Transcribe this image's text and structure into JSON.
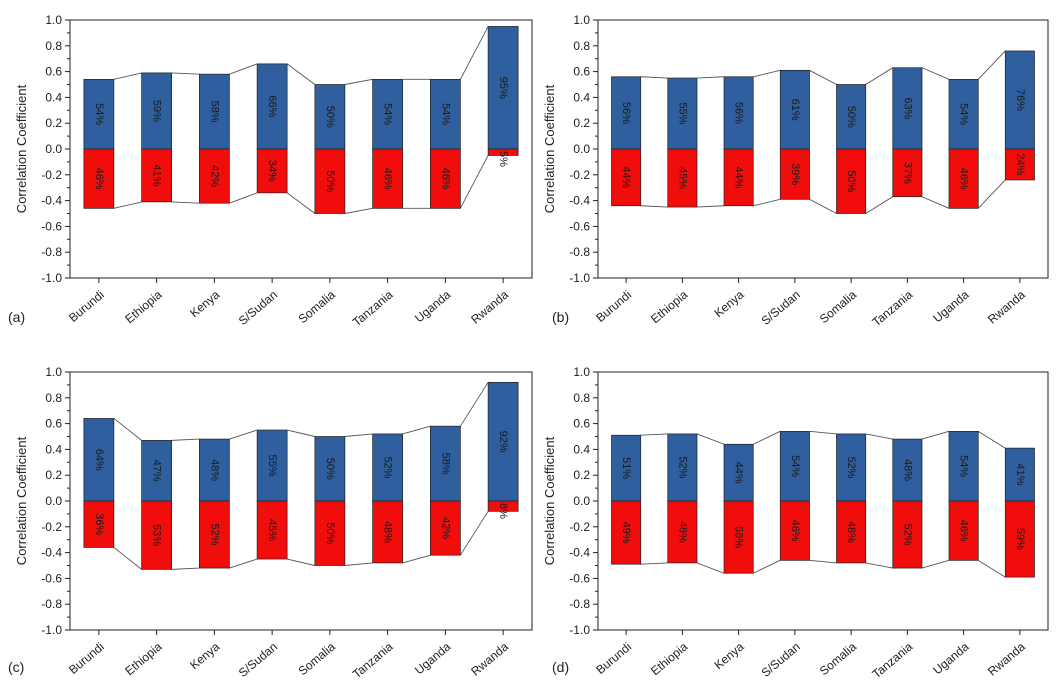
{
  "colors": {
    "positive": "#2f5f9e",
    "negative": "#f20d0d"
  },
  "chart_data": [
    {
      "type": "bar",
      "panel": "(a)",
      "ylabel": "Correlation Coefficient",
      "ylim": [
        -1.0,
        1.0
      ],
      "yticks": [
        "1.0",
        "0.8",
        "0.6",
        "0.4",
        "0.2",
        "0.0",
        "-0.2",
        "-0.4",
        "-0.6",
        "-0.8",
        "-1.0"
      ],
      "categories": [
        "Burundi",
        "Ethiopia",
        "Kenya",
        "S/Sudan",
        "Somalia",
        "Tanzania",
        "Uganda",
        "Rwanda"
      ],
      "series": [
        {
          "values": [
            0.54,
            0.59,
            0.58,
            0.66,
            0.5,
            0.54,
            0.54,
            0.95
          ],
          "labels": [
            "54%",
            "59%",
            "58%",
            "66%",
            "50%",
            "54%",
            "54%",
            "95%"
          ]
        },
        {
          "values": [
            -0.46,
            -0.41,
            -0.42,
            -0.34,
            -0.5,
            -0.46,
            -0.46,
            -0.05
          ],
          "labels": [
            "46%",
            "41%",
            "42%",
            "34%",
            "50%",
            "46%",
            "46%",
            "5%"
          ]
        }
      ]
    },
    {
      "type": "bar",
      "panel": "(b)",
      "ylabel": "Correlation Coefficient",
      "ylim": [
        -1.0,
        1.0
      ],
      "yticks": [
        "1.0",
        "0.8",
        "0.6",
        "0.4",
        "0.2",
        "0.0",
        "-0.2",
        "-0.4",
        "-0.6",
        "-0.8",
        "-1.0"
      ],
      "categories": [
        "Burundi",
        "Ethiopia",
        "Kenya",
        "S/Sudan",
        "Somalia",
        "Tanzania",
        "Uganda",
        "Rwanda"
      ],
      "series": [
        {
          "values": [
            0.56,
            0.55,
            0.56,
            0.61,
            0.5,
            0.63,
            0.54,
            0.76
          ],
          "labels": [
            "56%",
            "55%",
            "56%",
            "61%",
            "50%",
            "63%",
            "54%",
            "76%"
          ]
        },
        {
          "values": [
            -0.44,
            -0.45,
            -0.44,
            -0.39,
            -0.5,
            -0.37,
            -0.46,
            -0.24
          ],
          "labels": [
            "44%",
            "45%",
            "44%",
            "39%",
            "50%",
            "37%",
            "46%",
            "24%"
          ]
        }
      ]
    },
    {
      "type": "bar",
      "panel": "(c)",
      "ylabel": "Correlation Coefficient",
      "ylim": [
        -1.0,
        1.0
      ],
      "yticks": [
        "1.0",
        "0.8",
        "0.6",
        "0.4",
        "0.2",
        "0.0",
        "-0.2",
        "-0.4",
        "-0.6",
        "-0.8",
        "-1.0"
      ],
      "categories": [
        "Burundi",
        "Ethiopia",
        "Kenya",
        "S/Sudan",
        "Somalia",
        "Tanzania",
        "Uganda",
        "Rwanda"
      ],
      "series": [
        {
          "values": [
            0.64,
            0.47,
            0.48,
            0.55,
            0.5,
            0.52,
            0.58,
            0.92
          ],
          "labels": [
            "64%",
            "47%",
            "48%",
            "55%",
            "50%",
            "52%",
            "58%",
            "92%"
          ]
        },
        {
          "values": [
            -0.36,
            -0.53,
            -0.52,
            -0.45,
            -0.5,
            -0.48,
            -0.42,
            -0.08
          ],
          "labels": [
            "36%",
            "53%",
            "52%",
            "45%",
            "50%",
            "48%",
            "42%",
            "8%"
          ]
        }
      ]
    },
    {
      "type": "bar",
      "panel": "(d)",
      "ylabel": "Correlation Coefficient",
      "ylim": [
        -1.0,
        1.0
      ],
      "yticks": [
        "1.0",
        "0.8",
        "0.6",
        "0.4",
        "0.2",
        "0.0",
        "-0.2",
        "-0.4",
        "-0.6",
        "-0.8",
        "-1.0"
      ],
      "categories": [
        "Burundi",
        "Ethiopia",
        "Kenya",
        "S/Sudan",
        "Somalia",
        "Tanzania",
        "Uganda",
        "Rwanda"
      ],
      "series": [
        {
          "values": [
            0.51,
            0.52,
            0.44,
            0.54,
            0.52,
            0.48,
            0.54,
            0.41
          ],
          "labels": [
            "51%",
            "52%",
            "44%",
            "54%",
            "52%",
            "48%",
            "54%",
            "41%"
          ]
        },
        {
          "values": [
            -0.49,
            -0.48,
            -0.56,
            -0.46,
            -0.48,
            -0.52,
            -0.46,
            -0.59
          ],
          "labels": [
            "49%",
            "48%",
            "56%",
            "46%",
            "48%",
            "52%",
            "46%",
            "59%"
          ]
        }
      ]
    }
  ]
}
